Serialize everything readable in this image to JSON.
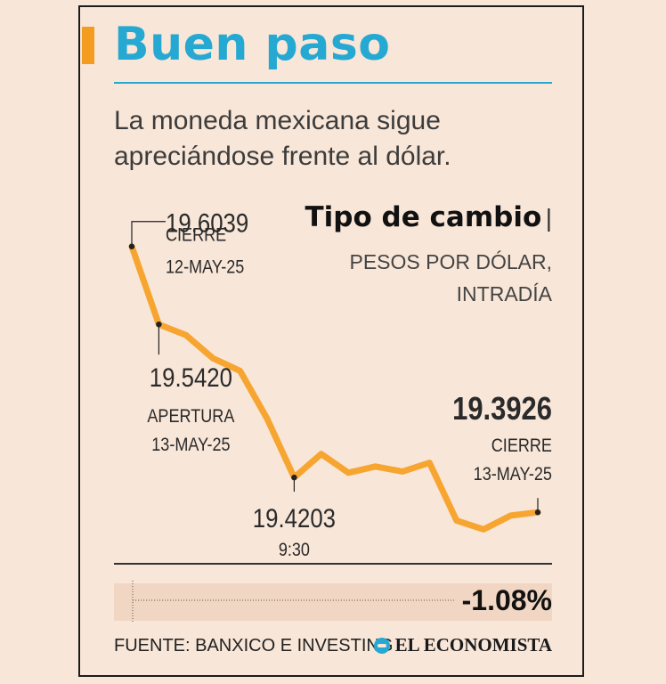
{
  "header": {
    "title": "Buen paso",
    "subtitle": "La moneda mexicana sigue apreciándose frente al dólar."
  },
  "legend": {
    "title": "Tipo de cambio",
    "unit_line1": "PESOS POR DÓLAR,",
    "unit_line2": "INTRADÍA"
  },
  "colors": {
    "accent": "#f39c1f",
    "title": "#25a9d2",
    "line": "#f7a531",
    "background": "#f8e6d8"
  },
  "chart_data": {
    "type": "line",
    "title": "Tipo de cambio",
    "ylabel": "PESOS POR DÓLAR, INTRADÍA",
    "xlabel": "",
    "ylim": [
      19.38,
      19.62
    ],
    "grid": false,
    "series": [
      {
        "values": [
          19.6039,
          19.542,
          19.5335,
          19.515,
          19.505,
          19.467,
          19.4203,
          19.439,
          19.424,
          19.429,
          19.425,
          19.432,
          19.386,
          19.379,
          19.39,
          19.3926
        ]
      }
    ],
    "annotations": [
      {
        "index": 0,
        "value": "19.6039",
        "label": "CIERRE",
        "date": "12-MAY-25"
      },
      {
        "index": 1,
        "value": "19.5420",
        "label": "APERTURA",
        "date": "13-MAY-25"
      },
      {
        "index": 6,
        "value": "19.4203",
        "label": "9:30"
      },
      {
        "index": 15,
        "value": "19.3926",
        "label": "CIERRE",
        "date": "13-MAY-25"
      }
    ]
  },
  "change": {
    "value": "-1.08%"
  },
  "footer": {
    "source": "FUENTE: BANXICO E INVESTING",
    "brand": "EL ECONOMISTA"
  }
}
